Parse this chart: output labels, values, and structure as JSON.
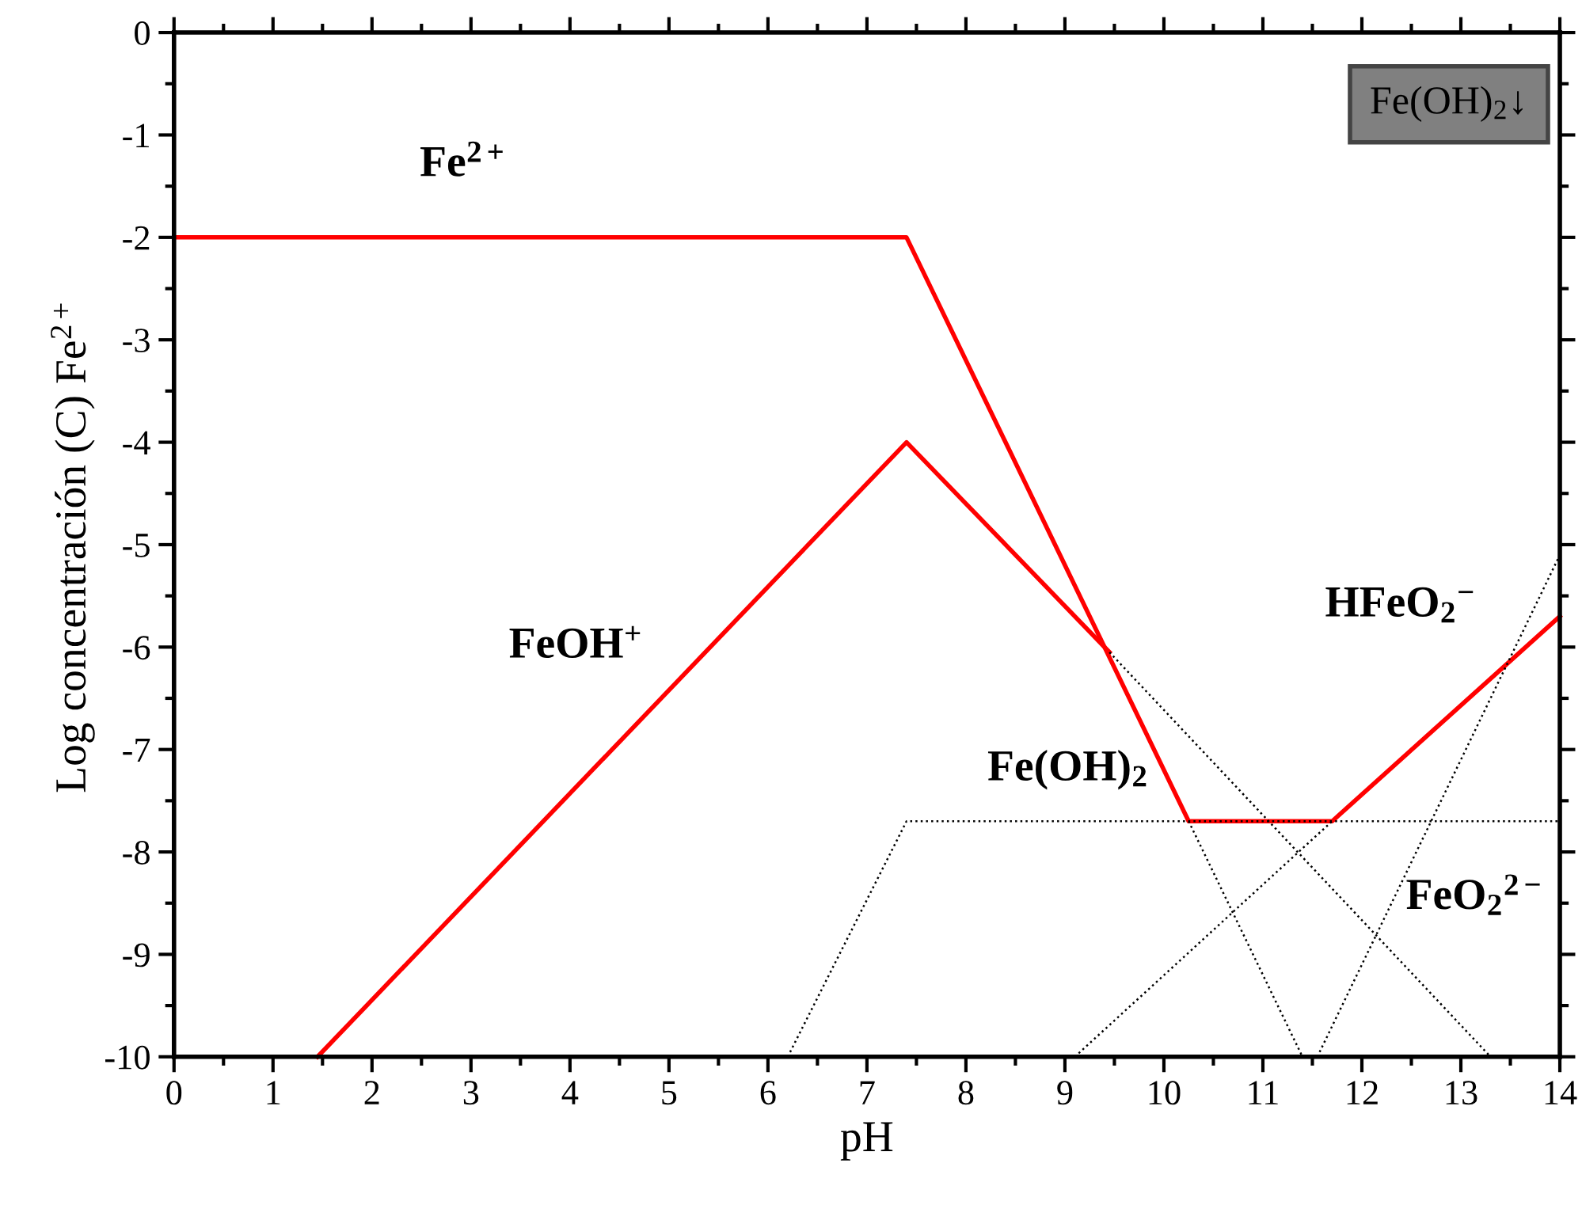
{
  "chart_data": {
    "type": "line",
    "xlabel": "pH",
    "ylabel": "Log concentración (C) Fe$^{2+}$",
    "xlim": [
      0,
      14
    ],
    "ylim": [
      -10,
      0
    ],
    "xticks": [
      0,
      1,
      2,
      3,
      4,
      5,
      6,
      7,
      8,
      9,
      10,
      11,
      12,
      13,
      14
    ],
    "yticks": [
      -10,
      -9,
      -8,
      -7,
      -6,
      -5,
      -4,
      -3,
      -2,
      -1,
      0
    ],
    "grid": false,
    "legend": false,
    "marker": "none",
    "series": [
      {
        "color": "#ff0000",
        "line_style": "solid",
        "x": [
          0,
          7.4,
          10.25,
          11.7,
          14
        ],
        "values": [
          -2,
          -2,
          -7.7,
          -7.7,
          -5.7
        ]
      },
      {
        "color": "#ff0000",
        "line_style": "solid",
        "x": [
          1.45,
          7.4,
          9.45
        ],
        "values": [
          -10,
          -4,
          -6.05
        ]
      },
      {
        "color": "#000000",
        "line_style": "dotted",
        "x": [
          6.2,
          7.4,
          14
        ],
        "values": [
          -10,
          -7.7,
          -7.7
        ]
      },
      {
        "color": "#000000",
        "line_style": "dotted",
        "x": [
          9.45,
          13.3
        ],
        "values": [
          -6.05,
          -10
        ]
      },
      {
        "color": "#000000",
        "line_style": "dotted",
        "x": [
          10.25,
          11.4
        ],
        "values": [
          -7.7,
          -10
        ]
      },
      {
        "color": "#000000",
        "line_style": "dotted",
        "x": [
          9.1,
          11.7
        ],
        "values": [
          -10,
          -7.7
        ]
      },
      {
        "color": "#000000",
        "line_style": "dotted",
        "x": [
          11.55,
          14
        ],
        "values": [
          -10,
          -5.1
        ]
      }
    ],
    "annotations": [
      "Fe$^{2+}$",
      "FeOH$^{+}$",
      "Fe(OH)$_{2}$",
      "HFeO$_{2}$$^{−}$",
      "FeO$_{2}$$^{2−}$",
      "Fe(OH)$_{2}$↓"
    ]
  }
}
